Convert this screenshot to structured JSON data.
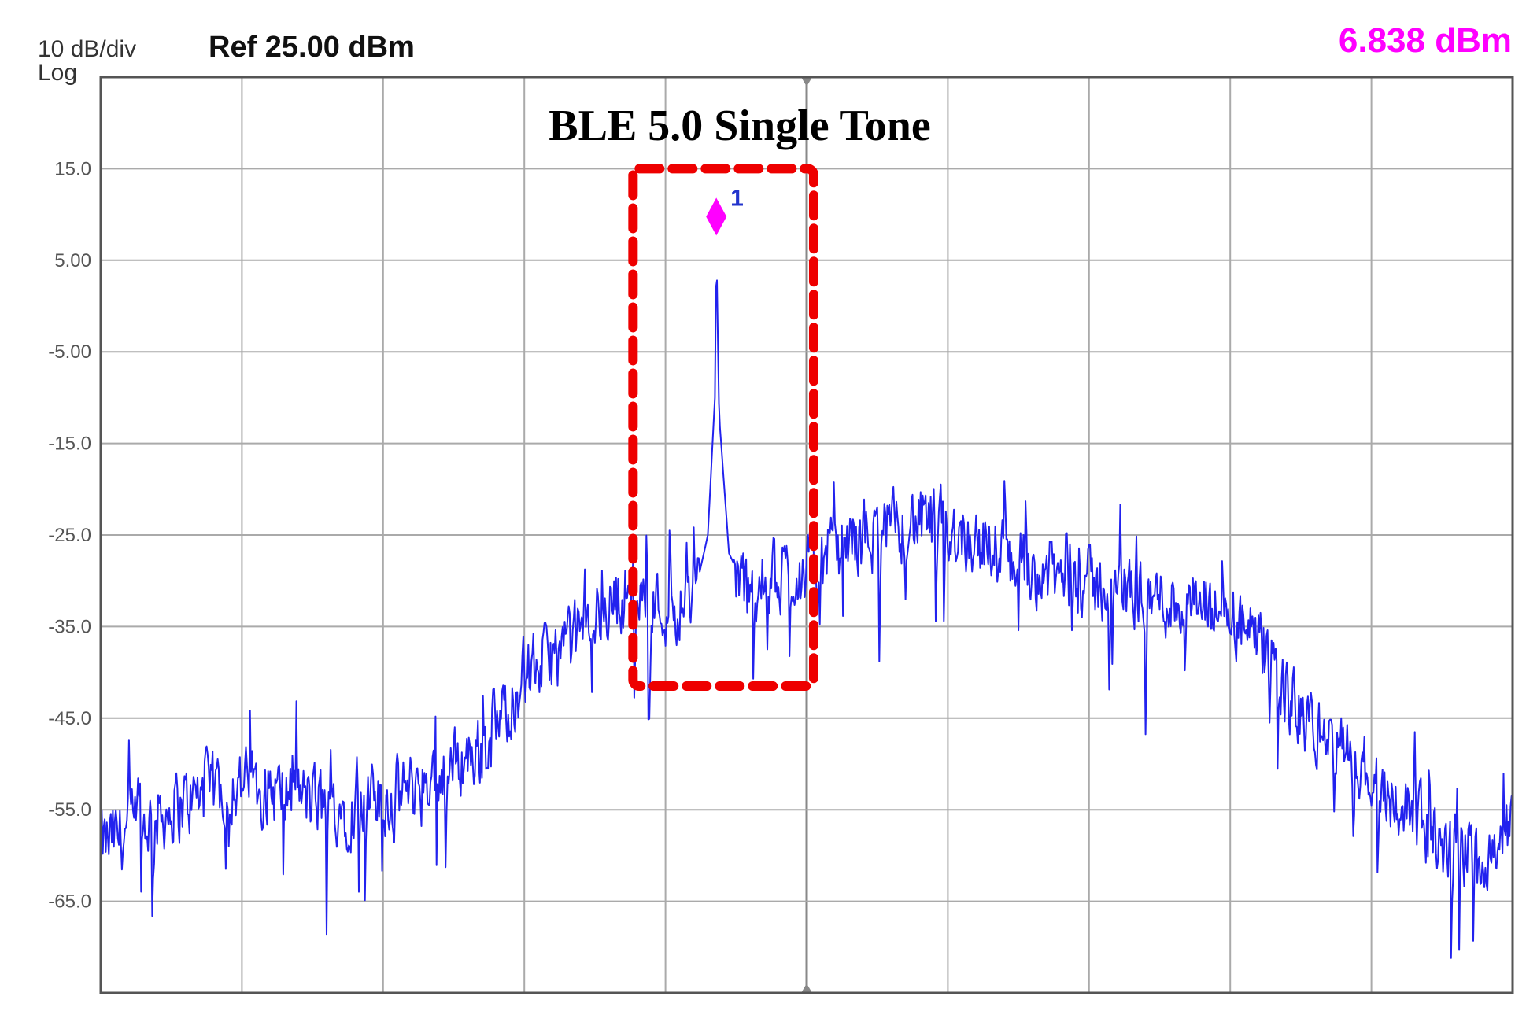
{
  "header": {
    "scale": "10 dB/div",
    "scale_mode": "Log",
    "ref_level": "Ref 25.00 dBm",
    "marker_readout": "6.838 dBm",
    "marker_color": "#ff00ff"
  },
  "chart_data": {
    "type": "line",
    "title": "BLE 5.0 Single Tone",
    "ylim": [
      -75,
      25
    ],
    "xlim": [
      0,
      10
    ],
    "y_tick_labels": [
      "15.0",
      "5.00",
      "-5.00",
      "-15.0",
      "-25.0",
      "-35.0",
      "-45.0",
      "-55.0",
      "-65.0"
    ],
    "y_ticks": [
      15,
      5,
      -5,
      -15,
      -25,
      -35,
      -45,
      -55,
      -65
    ],
    "x_divisions": 10,
    "grid": true,
    "trace_color": "#2222ee",
    "marker": {
      "label": "1",
      "x": 4.36,
      "y": 6.838
    },
    "highlight_box": {
      "x0": 3.77,
      "x1": 5.05,
      "y0": -41.5,
      "y1": 15.0,
      "color": "#ee0000"
    },
    "series": [
      {
        "x": [
          0,
          0.25,
          0.5,
          0.75,
          1.0,
          1.25,
          1.5,
          1.75,
          2.0,
          2.25,
          2.5,
          2.75,
          3.0,
          3.25,
          3.5,
          3.75,
          4.0,
          4.2,
          4.3,
          4.35,
          4.36,
          4.38,
          4.45,
          4.6,
          4.8,
          5.0,
          5.25,
          5.5,
          5.75,
          6.0,
          6.25,
          6.5,
          6.75,
          7.0,
          7.25,
          7.5,
          7.75,
          8.0,
          8.25,
          8.5,
          8.75,
          9.0,
          9.25,
          9.5,
          9.75,
          10.0
        ],
        "y": [
          -59,
          -57,
          -55,
          -53,
          -52,
          -53,
          -54,
          -55,
          -54,
          -52,
          -50,
          -48,
          -40,
          -38,
          -34,
          -31,
          -33,
          -32,
          -25,
          -10,
          6.838,
          -12,
          -27,
          -32,
          -29,
          -29,
          -26,
          -25,
          -23.5,
          -24,
          -26,
          -28,
          -29.5,
          -30.5,
          -31,
          -32,
          -33,
          -34,
          -38,
          -45,
          -48,
          -51,
          -55,
          -59,
          -60,
          -57
        ]
      }
    ]
  }
}
